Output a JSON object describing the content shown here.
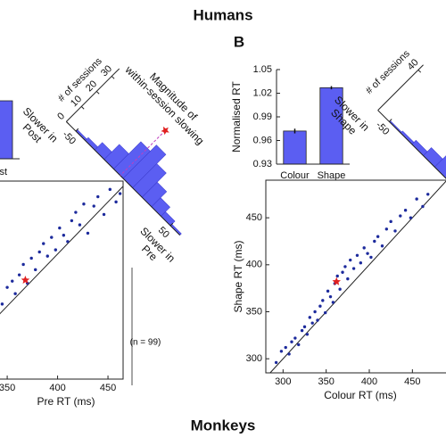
{
  "figure": {
    "title": "Humans",
    "panel_label": "B",
    "footer": "Monkeys",
    "partial_label": "Post"
  },
  "chart_data": [
    {
      "type": "histogram",
      "title_lines": [
        "Magnitude of",
        "within-session slowing"
      ],
      "y_label": "# of sessions",
      "low_label_lines": [
        "Slower in",
        "Post"
      ],
      "high_label_lines": [
        "Slower in",
        "Pre"
      ],
      "bins": [
        -60,
        -50,
        -40,
        -30,
        -20,
        -10,
        0,
        10,
        20,
        30,
        40,
        50,
        60
      ],
      "counts": [
        0,
        1,
        2,
        5,
        10,
        18,
        22,
        16,
        10,
        6,
        3,
        1
      ],
      "xlim": [
        -60,
        60
      ],
      "xticks": [
        -50,
        50
      ],
      "ylim": [
        0,
        35
      ],
      "yticks": [
        0,
        10,
        20,
        30
      ],
      "color": "#5b5ef2",
      "mean": -3,
      "mean_color": "#e02020"
    },
    {
      "type": "scatter",
      "x_label": "Pre RT (ms)",
      "note": "(n = 99)",
      "x": [
        300,
        310,
        318,
        326,
        333,
        340,
        345,
        350,
        355,
        358,
        362,
        366,
        370,
        374,
        378,
        382,
        386,
        390,
        394,
        398,
        402,
        406,
        410,
        414,
        418,
        422,
        426,
        430,
        436,
        440,
        446,
        452,
        458,
        462
      ],
      "values": [
        310,
        322,
        330,
        338,
        345,
        358,
        352,
        368,
        374,
        362,
        380,
        390,
        372,
        396,
        385,
        402,
        410,
        398,
        416,
        404,
        425,
        418,
        412,
        432,
        440,
        428,
        448,
        420,
        446,
        455,
        438,
        462,
        450,
        458
      ],
      "xlim": [
        280,
        465
      ],
      "ylim": [
        280,
        470
      ],
      "xticks": [
        350,
        400,
        450
      ],
      "color": "#1c2a9c",
      "highlight": {
        "x": 368,
        "y": 375,
        "color": "#e02020"
      }
    },
    {
      "type": "bar",
      "y_label": "Normalised RT",
      "categories": [
        "Colour",
        "Shape"
      ],
      "values": [
        0.972,
        1.027
      ],
      "errors": [
        0.003,
        0.002
      ],
      "ylim": [
        0.93,
        1.05
      ],
      "yticks": [
        0.93,
        0.96,
        0.99,
        1.02,
        1.05
      ],
      "color": "#5b5ef2"
    },
    {
      "type": "scatter",
      "x_label": "Colour RT (ms)",
      "y_label": "Shape RT (ms)",
      "x": [
        292,
        298,
        303,
        307,
        310,
        314,
        318,
        322,
        325,
        328,
        331,
        334,
        337,
        340,
        343,
        346,
        349,
        352,
        355,
        358,
        360,
        363,
        366,
        369,
        372,
        375,
        378,
        382,
        386,
        390,
        394,
        398,
        402,
        406,
        410,
        415,
        420,
        425,
        430,
        436,
        442,
        448,
        455,
        462,
        468
      ],
      "values": [
        296,
        308,
        312,
        305,
        318,
        322,
        315,
        330,
        334,
        326,
        344,
        338,
        350,
        341,
        356,
        362,
        349,
        372,
        366,
        360,
        380,
        388,
        374,
        392,
        398,
        385,
        405,
        396,
        410,
        402,
        418,
        412,
        408,
        425,
        430,
        420,
        438,
        446,
        436,
        452,
        458,
        450,
        470,
        462,
        475
      ],
      "xlim": [
        280,
        490
      ],
      "ylim": [
        285,
        490
      ],
      "xticks": [
        300,
        350,
        400,
        450
      ],
      "yticks": [
        300,
        350,
        400,
        450
      ],
      "color": "#1c2a9c",
      "highlight": {
        "x": 362,
        "y": 382,
        "color": "#e02020"
      }
    },
    {
      "type": "histogram",
      "y_label": "# of sessions",
      "low_label_lines": [
        "Slower in",
        "Shape"
      ],
      "bins": [
        -60,
        -50,
        -40,
        -30,
        -20,
        -10,
        0,
        10,
        20,
        30,
        40,
        50,
        60
      ],
      "counts": [
        0,
        1,
        2,
        4,
        8,
        14,
        20,
        18,
        12,
        6,
        3,
        1
      ],
      "xlim": [
        -60,
        60
      ],
      "xticks": [
        -50
      ],
      "ylim": [
        0,
        45
      ],
      "yticks": [
        40
      ],
      "color": "#5b5ef2"
    }
  ]
}
